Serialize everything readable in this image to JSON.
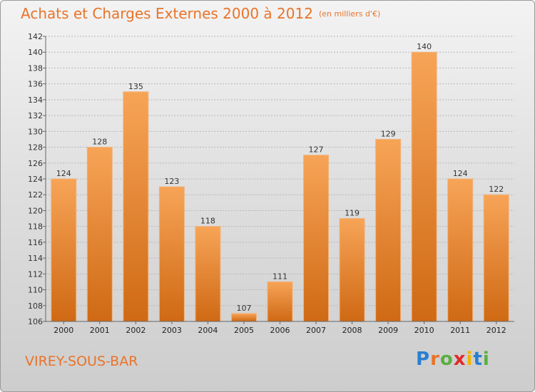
{
  "header": {
    "title": "Achats et Charges Externes 2000 à 2012",
    "unit": "(en milliers d'€)"
  },
  "footer": {
    "place": "VIREY-SOUS-BAR",
    "logo": "Proxiti"
  },
  "colors": {
    "accent": "#e8742a",
    "bar_top": "#f7a457",
    "bar_bottom": "#d06a14"
  },
  "chart_data": {
    "type": "bar",
    "categories": [
      "2000",
      "2001",
      "2002",
      "2003",
      "2004",
      "2005",
      "2006",
      "2007",
      "2008",
      "2009",
      "2010",
      "2011",
      "2012"
    ],
    "values": [
      124,
      128,
      135,
      123,
      118,
      107,
      111,
      127,
      119,
      129,
      140,
      124,
      122
    ],
    "title": "Achats et Charges Externes 2000 à 2012",
    "xlabel": "",
    "ylabel": "",
    "ylim": [
      106,
      142
    ],
    "yticks": [
      106,
      108,
      110,
      112,
      114,
      116,
      118,
      120,
      122,
      124,
      126,
      128,
      130,
      132,
      134,
      136,
      138,
      140,
      142
    ],
    "grid": true
  }
}
